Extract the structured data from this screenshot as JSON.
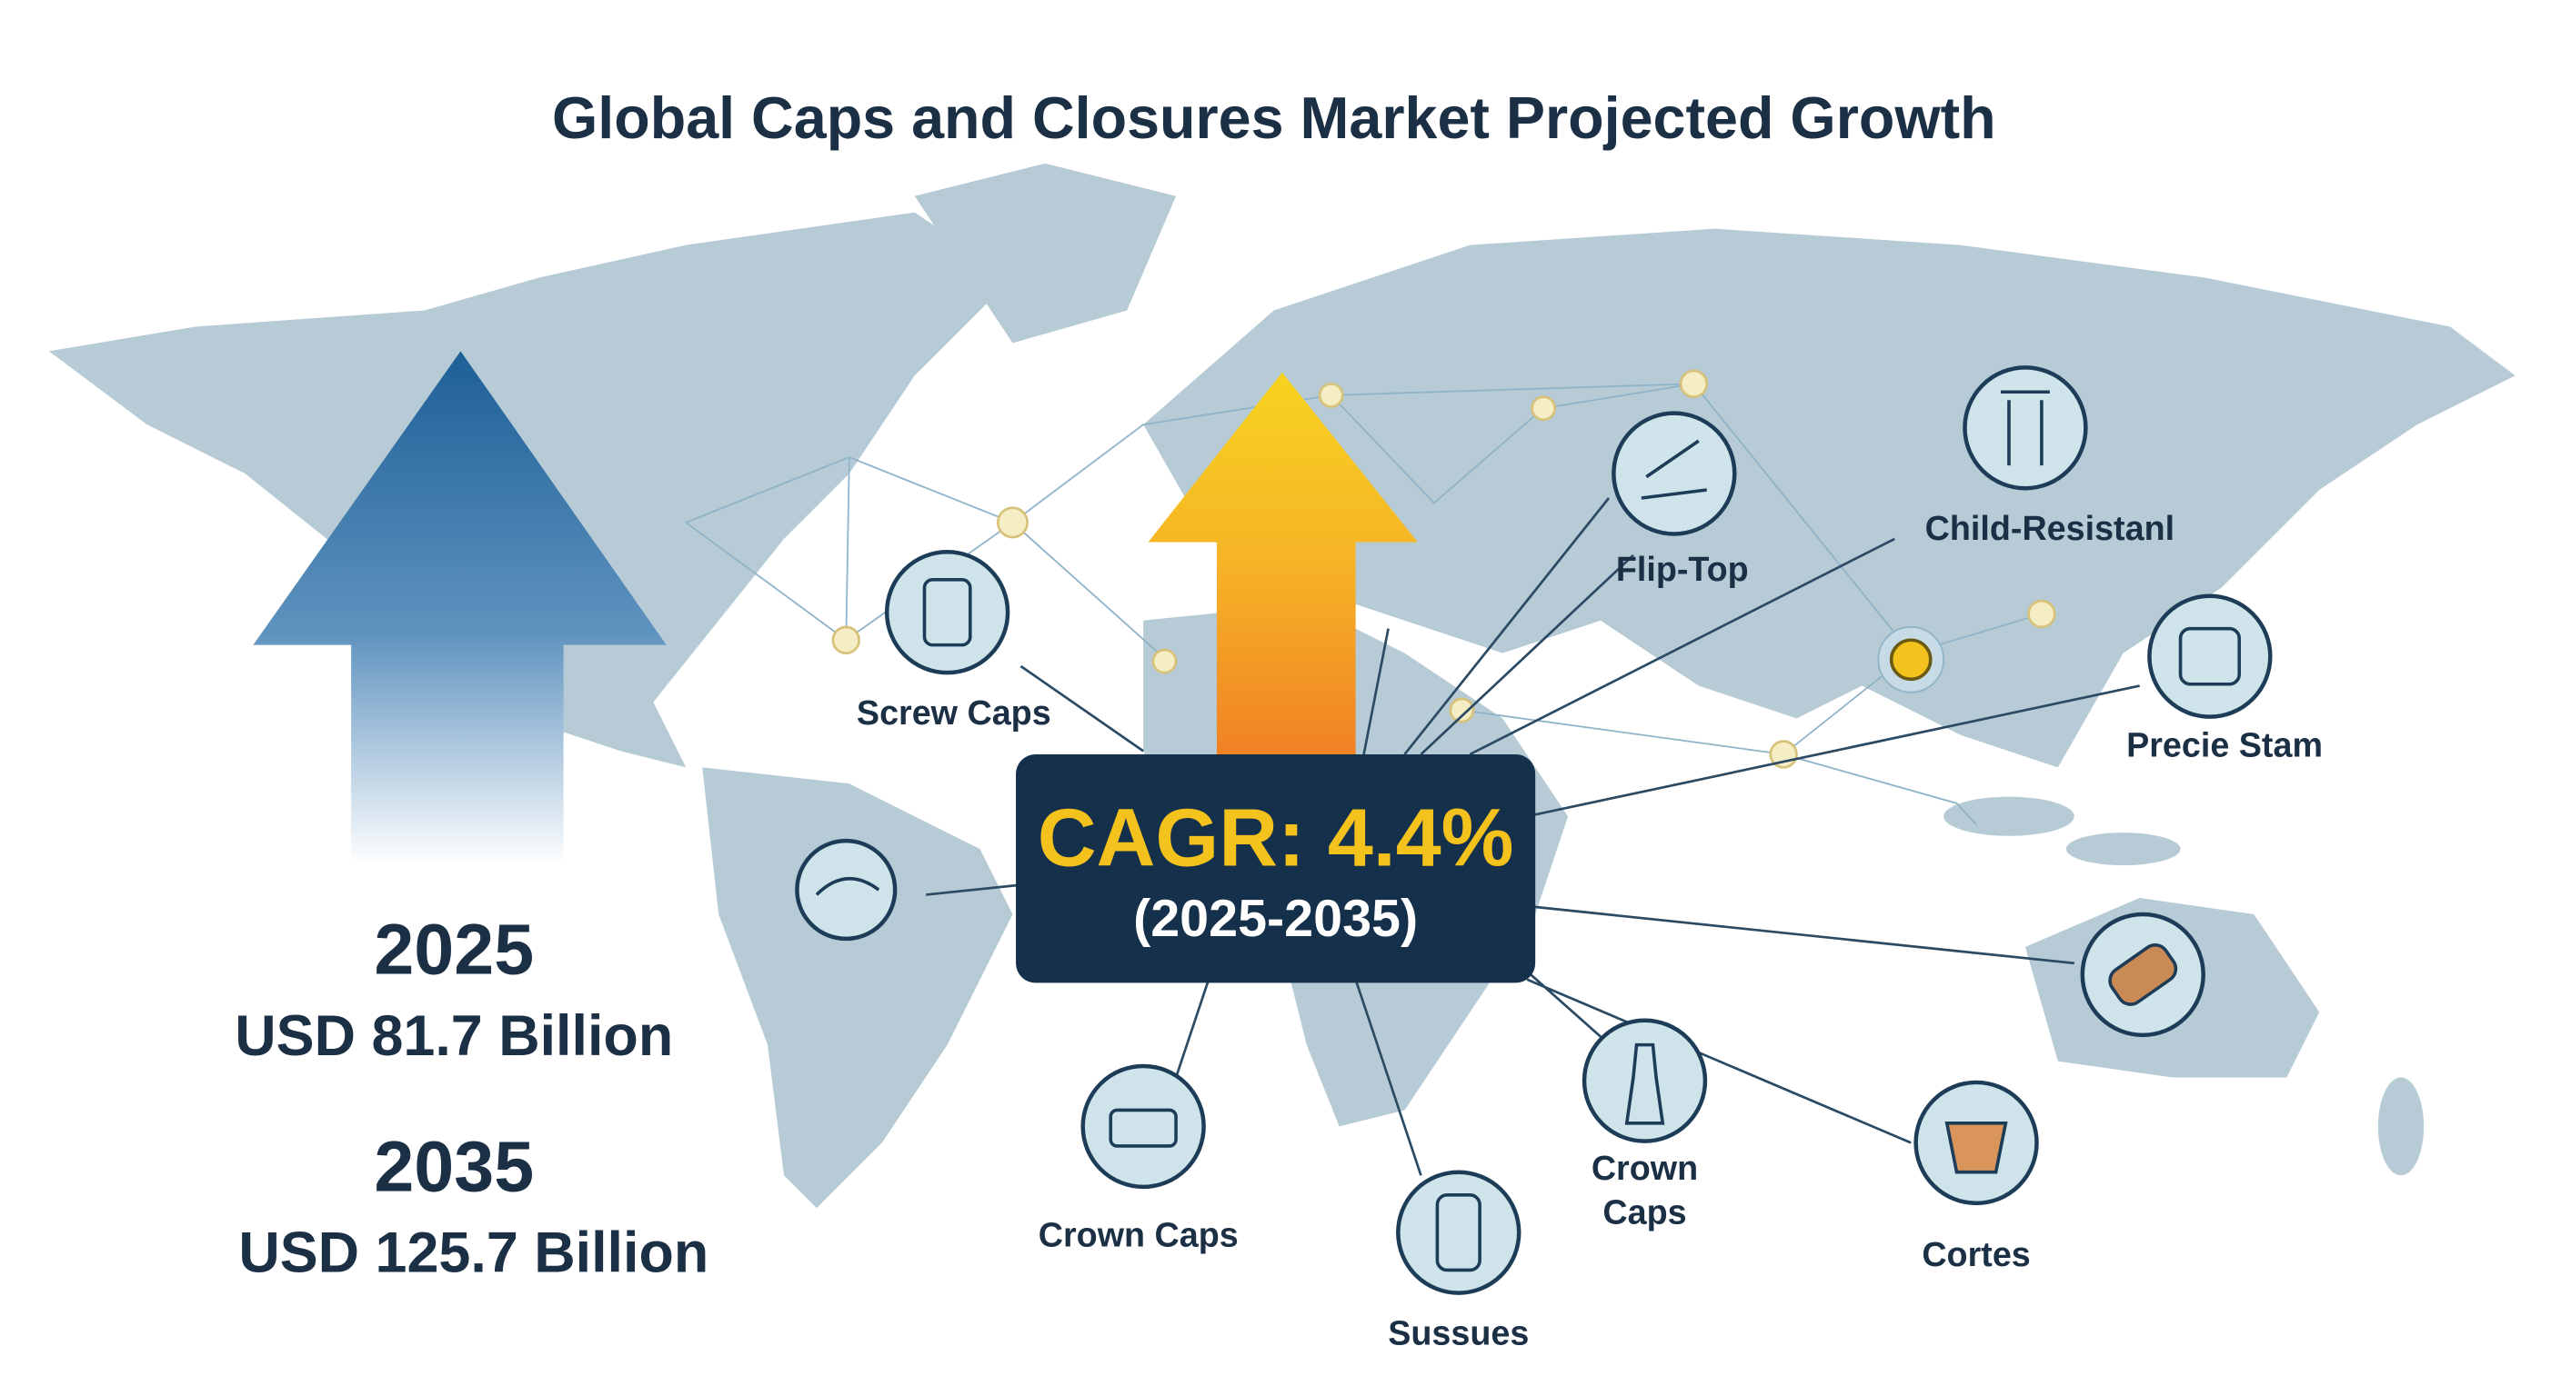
{
  "header": {
    "title": "Global Caps and Closures Market Projected Growth"
  },
  "cagr": {
    "label": "CAGR: 4.4%",
    "period": "(2025-2035)"
  },
  "figures": [
    {
      "year": "2025",
      "value": "USD 81.7 Billion"
    },
    {
      "year": "2035",
      "value": "USD 125.7 Billion"
    }
  ],
  "segments": [
    {
      "label": "Screw Caps"
    },
    {
      "label": "Flip-Top"
    },
    {
      "label": "Child-Resistanl"
    },
    {
      "label": "Precie Stam"
    },
    {
      "label": "Crown Caps"
    },
    {
      "label": "Sussues"
    },
    {
      "lines": [
        "Crown",
        "Caps"
      ]
    },
    {
      "label": "Cortes"
    }
  ]
}
